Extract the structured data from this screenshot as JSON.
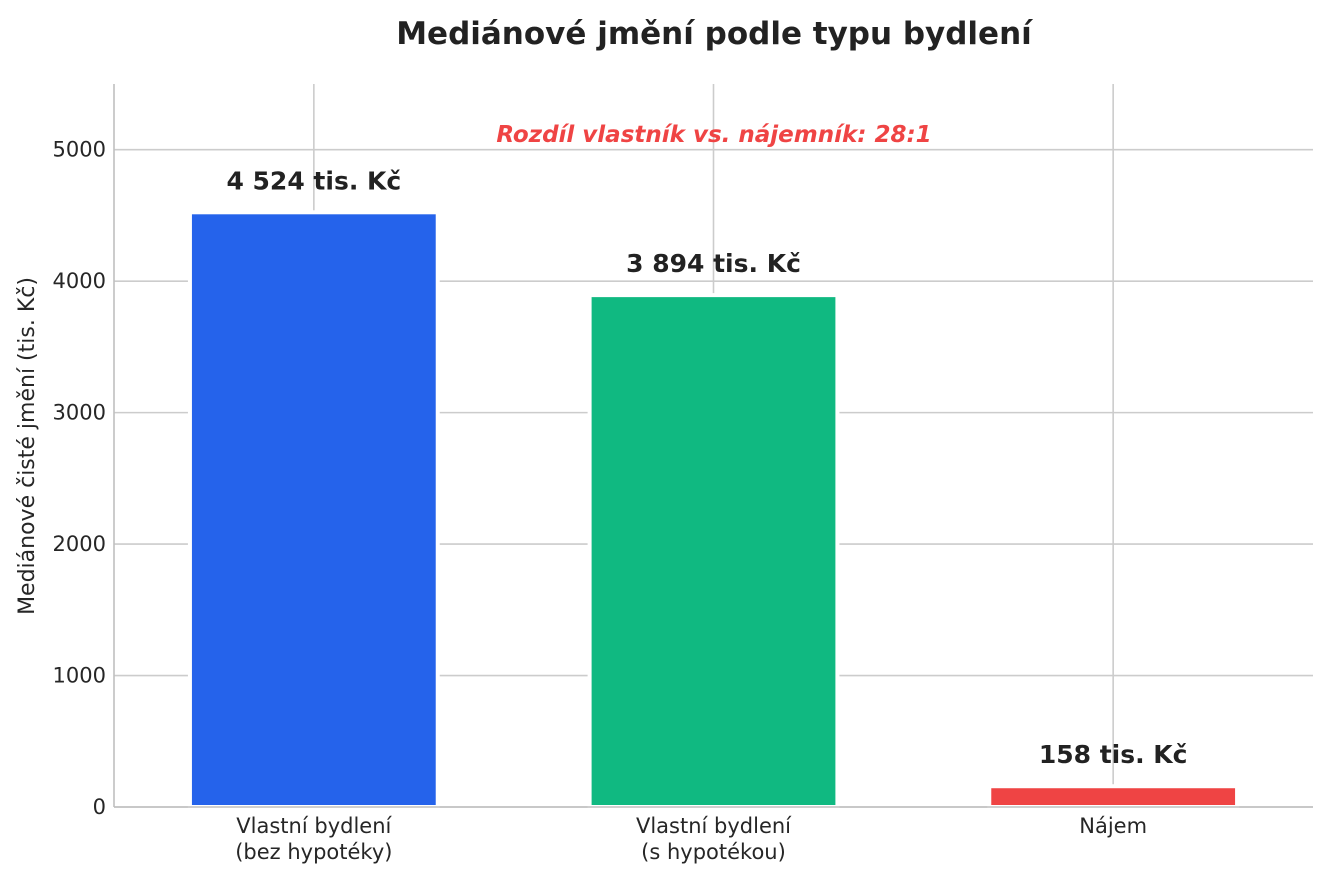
{
  "chart_data": {
    "type": "bar",
    "title": "Mediánové jmění podle typu bydlení",
    "xlabel": "",
    "ylabel": "Mediánové čisté jmění (tis. Kč)",
    "categories": [
      [
        "Vlastní bydlení",
        "(bez hypotéky)"
      ],
      [
        "Vlastní bydlení",
        "(s hypotékou)"
      ],
      [
        "Nájem"
      ]
    ],
    "values": [
      4524,
      3894,
      158
    ],
    "value_labels": [
      "4 524 tis. Kč",
      "3 894 tis. Kč",
      "158 tis. Kč"
    ],
    "colors": [
      "#2563eb",
      "#10b981",
      "#ef4444"
    ],
    "ylim": [
      0,
      5500
    ],
    "yticks": [
      0,
      1000,
      2000,
      3000,
      4000,
      5000
    ],
    "grid": true,
    "annotation": {
      "text": "Rozdíl vlastník vs. nájemník: 28:1",
      "color": "#ef4444"
    }
  }
}
